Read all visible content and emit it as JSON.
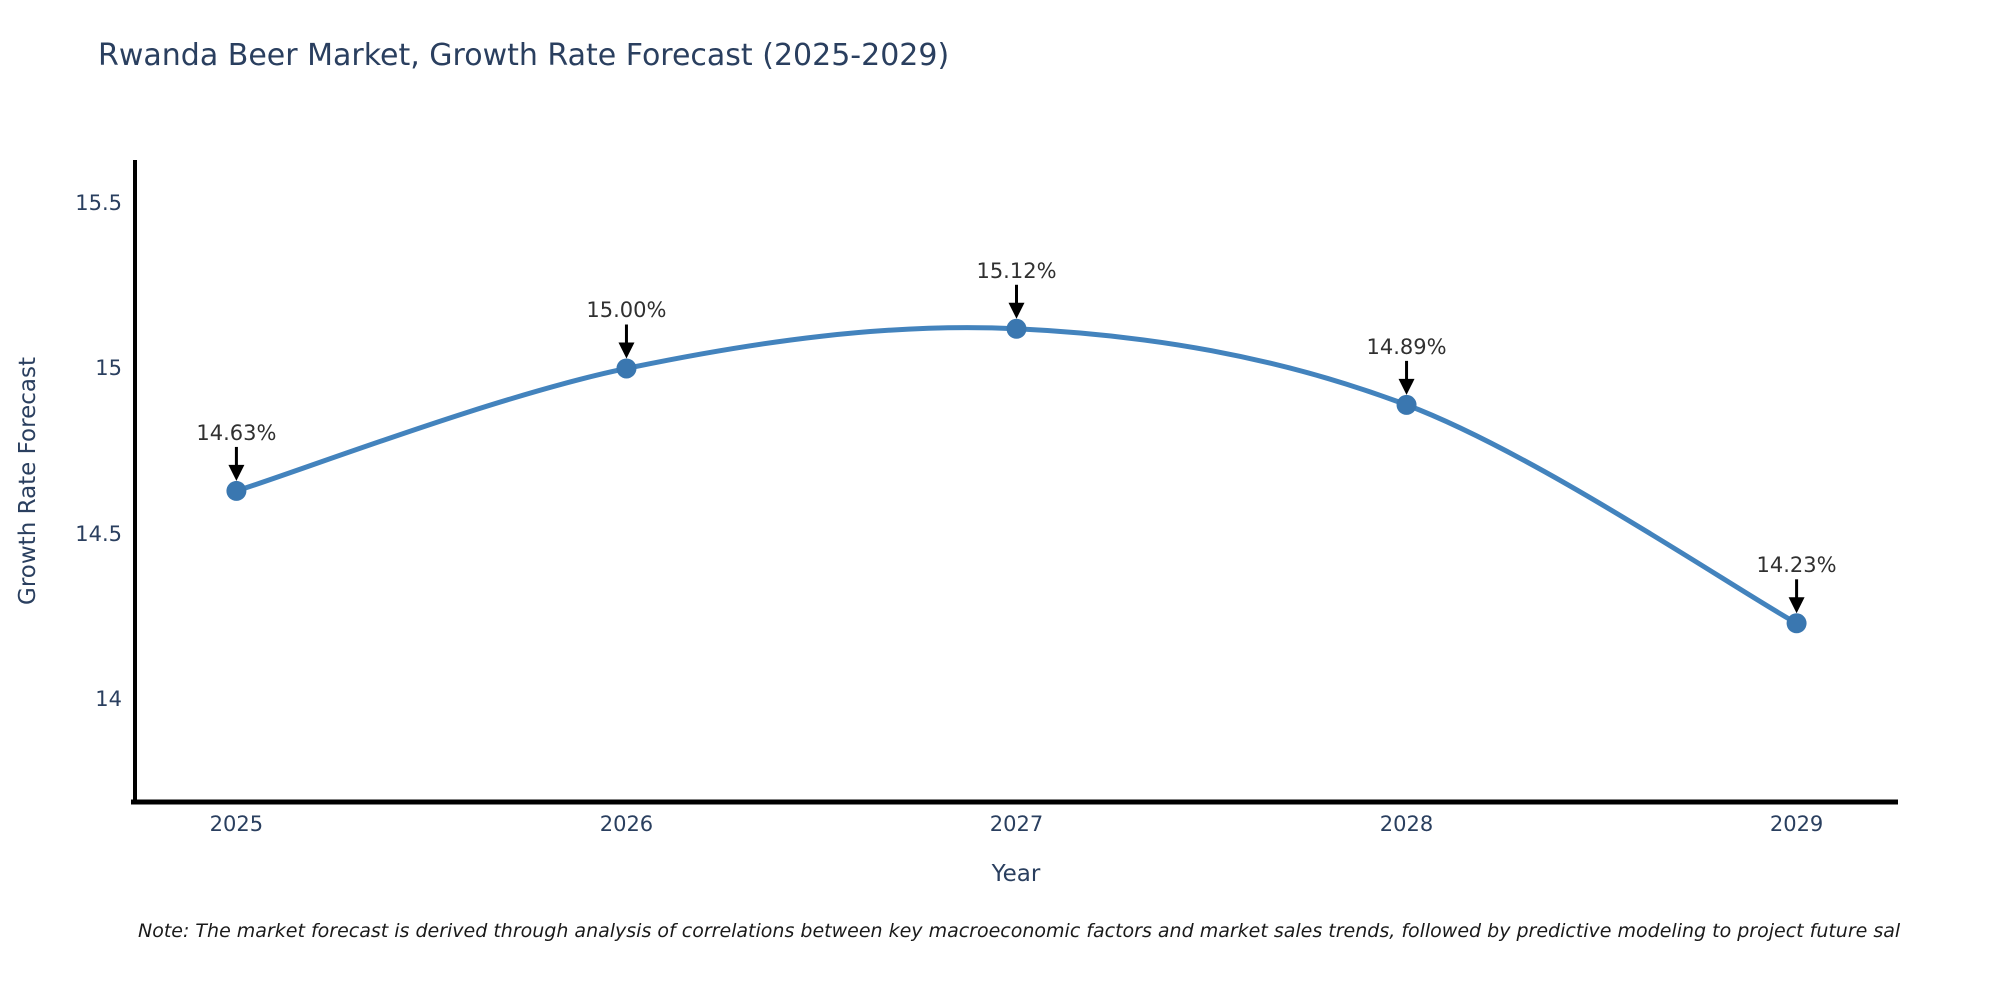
{
  "title": "Rwanda Beer Market, Growth Rate Forecast (2025-2029)",
  "note": "Note: The market forecast is derived through analysis of correlations between key macroeconomic factors and market sales trends, followed by predictive modeling to project future sal",
  "chart_data": {
    "type": "line",
    "title": "Rwanda Beer Market, Growth Rate Forecast (2025-2029)",
    "xlabel": "Year",
    "ylabel": "Growth Rate Forecast",
    "x": [
      2025,
      2026,
      2027,
      2028,
      2029
    ],
    "values": [
      14.63,
      15.0,
      15.12,
      14.89,
      14.23
    ],
    "point_labels": [
      "14.63%",
      "15.00%",
      "15.12%",
      "14.89%",
      "14.23%"
    ],
    "xtick_labels": [
      "2025",
      "2026",
      "2027",
      "2028",
      "2029"
    ],
    "yticks": [
      14,
      14.5,
      15,
      15.5
    ],
    "ytick_labels": [
      "14",
      "14.5",
      "15",
      "15.5"
    ],
    "xlim": [
      2024.74,
      2029.26
    ],
    "ylim": [
      13.69,
      15.63
    ],
    "grid": false,
    "legend_position": "none",
    "curve": "smooth-spline",
    "annotation_arrows": true,
    "colors": {
      "line": "#4383bd",
      "marker": "#3a77b0",
      "axis": "#000000",
      "tick_text": "#2a3f5f",
      "annotation_text": "#303030",
      "arrow": "#000000"
    }
  }
}
